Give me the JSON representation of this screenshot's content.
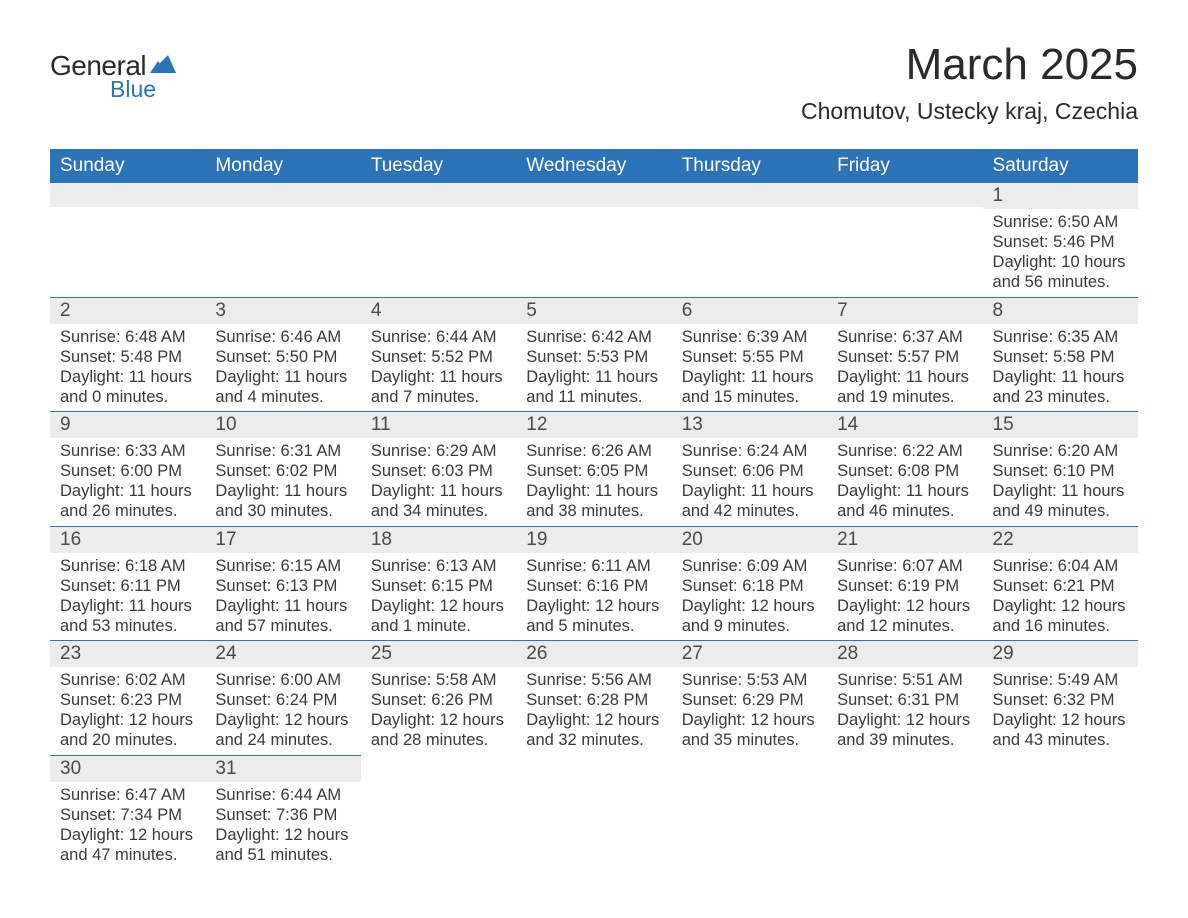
{
  "logo": {
    "general": "General",
    "blue": "Blue",
    "shape_color": "#2b74b8"
  },
  "header": {
    "month_title": "March 2025",
    "location": "Chomutov, Ustecky kraj, Czechia"
  },
  "calendar": {
    "columns": [
      "Sunday",
      "Monday",
      "Tuesday",
      "Wednesday",
      "Thursday",
      "Friday",
      "Saturday"
    ],
    "header_bg": "#2b74b8",
    "header_text_color": "#ffffff",
    "row_separator_color": "#2b74b8",
    "daynum_bg": "#ececec",
    "text_color": "#3a3a3a",
    "weeks": [
      [
        null,
        null,
        null,
        null,
        null,
        null,
        {
          "day": "1",
          "sunrise": "Sunrise: 6:50 AM",
          "sunset": "Sunset: 5:46 PM",
          "daylight": "Daylight: 10 hours and 56 minutes."
        }
      ],
      [
        {
          "day": "2",
          "sunrise": "Sunrise: 6:48 AM",
          "sunset": "Sunset: 5:48 PM",
          "daylight": "Daylight: 11 hours and 0 minutes."
        },
        {
          "day": "3",
          "sunrise": "Sunrise: 6:46 AM",
          "sunset": "Sunset: 5:50 PM",
          "daylight": "Daylight: 11 hours and 4 minutes."
        },
        {
          "day": "4",
          "sunrise": "Sunrise: 6:44 AM",
          "sunset": "Sunset: 5:52 PM",
          "daylight": "Daylight: 11 hours and 7 minutes."
        },
        {
          "day": "5",
          "sunrise": "Sunrise: 6:42 AM",
          "sunset": "Sunset: 5:53 PM",
          "daylight": "Daylight: 11 hours and 11 minutes."
        },
        {
          "day": "6",
          "sunrise": "Sunrise: 6:39 AM",
          "sunset": "Sunset: 5:55 PM",
          "daylight": "Daylight: 11 hours and 15 minutes."
        },
        {
          "day": "7",
          "sunrise": "Sunrise: 6:37 AM",
          "sunset": "Sunset: 5:57 PM",
          "daylight": "Daylight: 11 hours and 19 minutes."
        },
        {
          "day": "8",
          "sunrise": "Sunrise: 6:35 AM",
          "sunset": "Sunset: 5:58 PM",
          "daylight": "Daylight: 11 hours and 23 minutes."
        }
      ],
      [
        {
          "day": "9",
          "sunrise": "Sunrise: 6:33 AM",
          "sunset": "Sunset: 6:00 PM",
          "daylight": "Daylight: 11 hours and 26 minutes."
        },
        {
          "day": "10",
          "sunrise": "Sunrise: 6:31 AM",
          "sunset": "Sunset: 6:02 PM",
          "daylight": "Daylight: 11 hours and 30 minutes."
        },
        {
          "day": "11",
          "sunrise": "Sunrise: 6:29 AM",
          "sunset": "Sunset: 6:03 PM",
          "daylight": "Daylight: 11 hours and 34 minutes."
        },
        {
          "day": "12",
          "sunrise": "Sunrise: 6:26 AM",
          "sunset": "Sunset: 6:05 PM",
          "daylight": "Daylight: 11 hours and 38 minutes."
        },
        {
          "day": "13",
          "sunrise": "Sunrise: 6:24 AM",
          "sunset": "Sunset: 6:06 PM",
          "daylight": "Daylight: 11 hours and 42 minutes."
        },
        {
          "day": "14",
          "sunrise": "Sunrise: 6:22 AM",
          "sunset": "Sunset: 6:08 PM",
          "daylight": "Daylight: 11 hours and 46 minutes."
        },
        {
          "day": "15",
          "sunrise": "Sunrise: 6:20 AM",
          "sunset": "Sunset: 6:10 PM",
          "daylight": "Daylight: 11 hours and 49 minutes."
        }
      ],
      [
        {
          "day": "16",
          "sunrise": "Sunrise: 6:18 AM",
          "sunset": "Sunset: 6:11 PM",
          "daylight": "Daylight: 11 hours and 53 minutes."
        },
        {
          "day": "17",
          "sunrise": "Sunrise: 6:15 AM",
          "sunset": "Sunset: 6:13 PM",
          "daylight": "Daylight: 11 hours and 57 minutes."
        },
        {
          "day": "18",
          "sunrise": "Sunrise: 6:13 AM",
          "sunset": "Sunset: 6:15 PM",
          "daylight": "Daylight: 12 hours and 1 minute."
        },
        {
          "day": "19",
          "sunrise": "Sunrise: 6:11 AM",
          "sunset": "Sunset: 6:16 PM",
          "daylight": "Daylight: 12 hours and 5 minutes."
        },
        {
          "day": "20",
          "sunrise": "Sunrise: 6:09 AM",
          "sunset": "Sunset: 6:18 PM",
          "daylight": "Daylight: 12 hours and 9 minutes."
        },
        {
          "day": "21",
          "sunrise": "Sunrise: 6:07 AM",
          "sunset": "Sunset: 6:19 PM",
          "daylight": "Daylight: 12 hours and 12 minutes."
        },
        {
          "day": "22",
          "sunrise": "Sunrise: 6:04 AM",
          "sunset": "Sunset: 6:21 PM",
          "daylight": "Daylight: 12 hours and 16 minutes."
        }
      ],
      [
        {
          "day": "23",
          "sunrise": "Sunrise: 6:02 AM",
          "sunset": "Sunset: 6:23 PM",
          "daylight": "Daylight: 12 hours and 20 minutes."
        },
        {
          "day": "24",
          "sunrise": "Sunrise: 6:00 AM",
          "sunset": "Sunset: 6:24 PM",
          "daylight": "Daylight: 12 hours and 24 minutes."
        },
        {
          "day": "25",
          "sunrise": "Sunrise: 5:58 AM",
          "sunset": "Sunset: 6:26 PM",
          "daylight": "Daylight: 12 hours and 28 minutes."
        },
        {
          "day": "26",
          "sunrise": "Sunrise: 5:56 AM",
          "sunset": "Sunset: 6:28 PM",
          "daylight": "Daylight: 12 hours and 32 minutes."
        },
        {
          "day": "27",
          "sunrise": "Sunrise: 5:53 AM",
          "sunset": "Sunset: 6:29 PM",
          "daylight": "Daylight: 12 hours and 35 minutes."
        },
        {
          "day": "28",
          "sunrise": "Sunrise: 5:51 AM",
          "sunset": "Sunset: 6:31 PM",
          "daylight": "Daylight: 12 hours and 39 minutes."
        },
        {
          "day": "29",
          "sunrise": "Sunrise: 5:49 AM",
          "sunset": "Sunset: 6:32 PM",
          "daylight": "Daylight: 12 hours and 43 minutes."
        }
      ],
      [
        {
          "day": "30",
          "sunrise": "Sunrise: 6:47 AM",
          "sunset": "Sunset: 7:34 PM",
          "daylight": "Daylight: 12 hours and 47 minutes."
        },
        {
          "day": "31",
          "sunrise": "Sunrise: 6:44 AM",
          "sunset": "Sunset: 7:36 PM",
          "daylight": "Daylight: 12 hours and 51 minutes."
        },
        null,
        null,
        null,
        null,
        null
      ]
    ]
  }
}
